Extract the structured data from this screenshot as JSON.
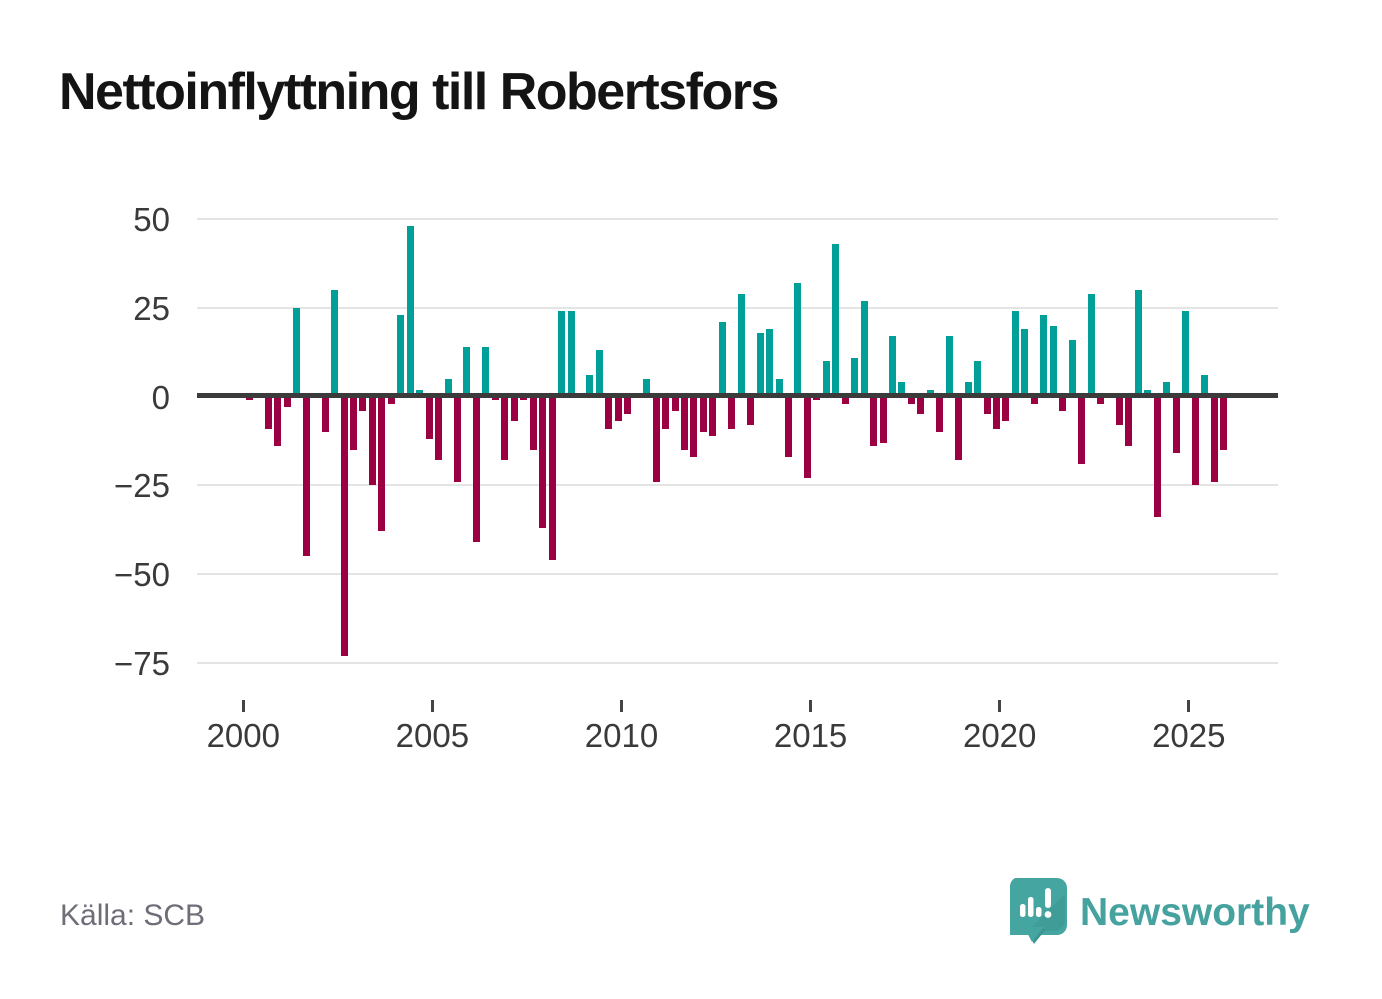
{
  "title": "Nettoinflyttning till Robertsfors",
  "source": "Källa: SCB",
  "logo": {
    "text": "Newsworthy",
    "icon": "speech-bubble-bar-chart-icon"
  },
  "colors": {
    "positive": "#00A099",
    "negative": "#9B0042",
    "axis": "#3b3b3b",
    "grid": "#e4e4e4",
    "brand": "#46a29e",
    "title_text": "#141414",
    "tick_text": "#3a3a3a",
    "source_text": "#6e6e78"
  },
  "chart_data": {
    "type": "bar",
    "title": "Nettoinflyttning till Robertsfors",
    "xlabel": "",
    "ylabel": "",
    "grid": true,
    "legend": false,
    "frequency": "quarterly",
    "x_axis": {
      "tick_labels": [
        "2000",
        "2005",
        "2010",
        "2015",
        "2020",
        "2025"
      ],
      "tick_years": [
        2000,
        2005,
        2010,
        2015,
        2020,
        2025
      ]
    },
    "y_axis": {
      "tick_values": [
        50,
        25,
        0,
        -25,
        -50,
        -75
      ],
      "tick_labels": [
        "50",
        "25",
        "0",
        "−25",
        "−50",
        "−75"
      ],
      "ylim": [
        -80,
        55
      ]
    },
    "series": [
      {
        "name": "Nettoinflyttning",
        "start": "2000-Q1",
        "end": "2025-Q4",
        "values_by_year": [
          {
            "year": 2000,
            "q": [
              -1,
              1,
              -9,
              -14
            ]
          },
          {
            "year": 2001,
            "q": [
              -3,
              25,
              -45,
              1
            ]
          },
          {
            "year": 2002,
            "q": [
              -10,
              30,
              -73,
              -15
            ]
          },
          {
            "year": 2003,
            "q": [
              -4,
              -25,
              -38,
              -2
            ]
          },
          {
            "year": 2004,
            "q": [
              23,
              48,
              2,
              -12
            ]
          },
          {
            "year": 2005,
            "q": [
              -18,
              5,
              -24,
              14
            ]
          },
          {
            "year": 2006,
            "q": [
              -41,
              14,
              -1,
              -18
            ]
          },
          {
            "year": 2007,
            "q": [
              -7,
              -1,
              -15,
              -37
            ]
          },
          {
            "year": 2008,
            "q": [
              -46,
              24,
              24,
              0
            ]
          },
          {
            "year": 2009,
            "q": [
              6,
              13,
              -9,
              -7
            ]
          },
          {
            "year": 2010,
            "q": [
              -5,
              0,
              5,
              -24
            ]
          },
          {
            "year": 2011,
            "q": [
              -9,
              -4,
              -15,
              -17
            ]
          },
          {
            "year": 2012,
            "q": [
              -10,
              -11,
              21,
              -9
            ]
          },
          {
            "year": 2013,
            "q": [
              29,
              -8,
              18,
              19
            ]
          },
          {
            "year": 2014,
            "q": [
              5,
              -17,
              32,
              -23
            ]
          },
          {
            "year": 2015,
            "q": [
              -1,
              10,
              43,
              -2
            ]
          },
          {
            "year": 2016,
            "q": [
              11,
              27,
              -14,
              -13
            ]
          },
          {
            "year": 2017,
            "q": [
              17,
              4,
              -2,
              -5
            ]
          },
          {
            "year": 2018,
            "q": [
              2,
              -10,
              17,
              -18
            ]
          },
          {
            "year": 2019,
            "q": [
              4,
              10,
              -5,
              -9
            ]
          },
          {
            "year": 2020,
            "q": [
              -7,
              24,
              19,
              -2
            ]
          },
          {
            "year": 2021,
            "q": [
              23,
              20,
              -4,
              16
            ]
          },
          {
            "year": 2022,
            "q": [
              -19,
              29,
              -2,
              0
            ]
          },
          {
            "year": 2023,
            "q": [
              -8,
              -14,
              30,
              2
            ]
          },
          {
            "year": 2024,
            "q": [
              -34,
              4,
              -16,
              24
            ]
          },
          {
            "year": 2025,
            "q": [
              -25,
              6,
              -24,
              -15
            ]
          }
        ]
      }
    ]
  }
}
